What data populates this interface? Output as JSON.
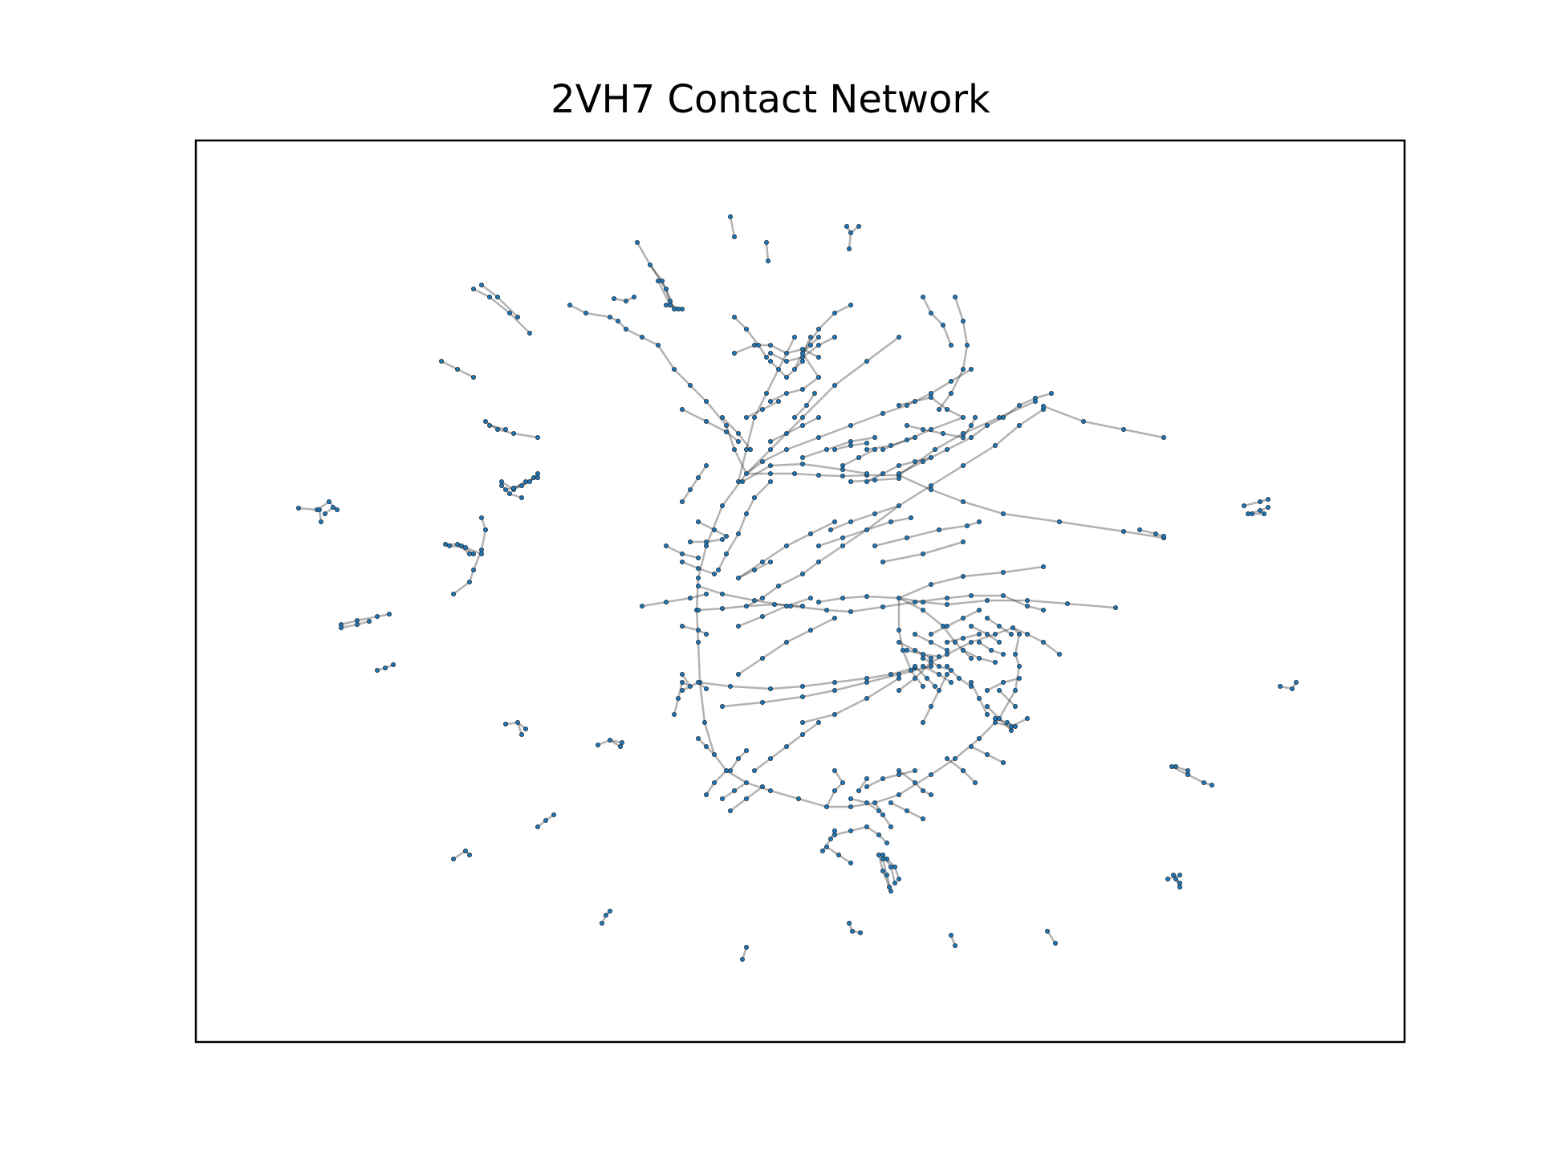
{
  "figure": {
    "title": "2VH7 Contact Network"
  },
  "style": {
    "node_fill": "#1f77b4",
    "node_stroke": "#1f2f3f",
    "edge_color": "#000000",
    "edge_opacity": 0.3,
    "frame_color": "#000000",
    "background": "#ffffff"
  },
  "network": {
    "layout": "force-directed",
    "axes_ticks": "none"
  }
}
